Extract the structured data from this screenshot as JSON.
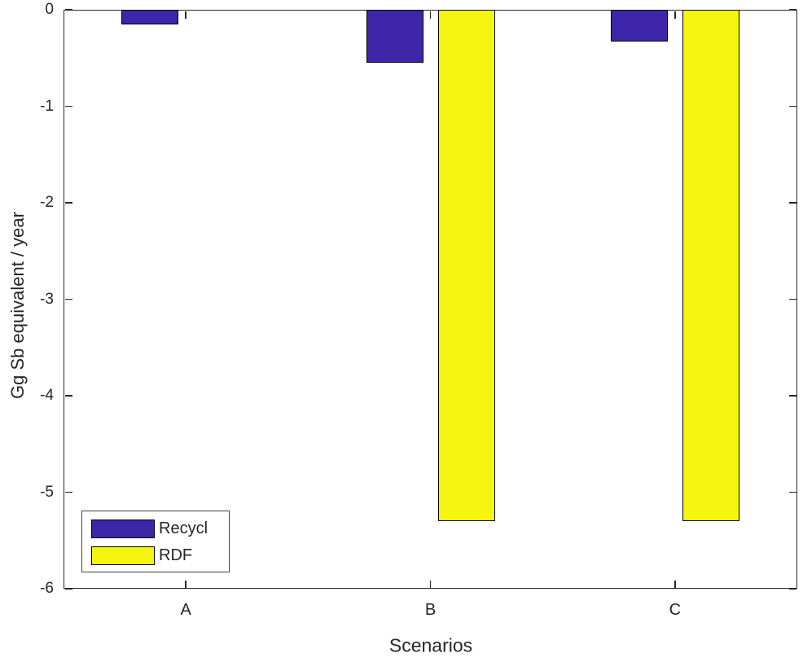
{
  "figure": {
    "background_color": "#ffffff",
    "axis_color": "#262626",
    "bar_edge_color": "#000000"
  },
  "chart_data": {
    "type": "bar",
    "title": "",
    "xlabel": "Scenarios",
    "ylabel": "Gg Sb equivalent / year",
    "categories": [
      "A",
      "B",
      "C"
    ],
    "series": [
      {
        "name": "Recycl",
        "color": "#3E26A8",
        "values": [
          -0.15,
          -0.55,
          -0.33
        ]
      },
      {
        "name": "RDF",
        "color": "#F5F50F",
        "values": [
          0,
          -5.3,
          -5.3
        ]
      }
    ],
    "ylim": [
      -6,
      0
    ],
    "yticks": [
      0,
      -1,
      -2,
      -3,
      -4,
      -5,
      -6
    ],
    "grid": false,
    "box": true,
    "legend_position": "bottom-left"
  }
}
